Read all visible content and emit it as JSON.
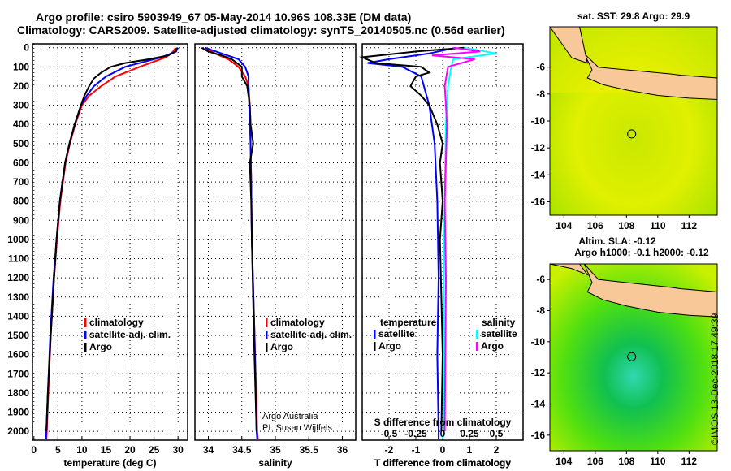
{
  "header": {
    "line1": "Argo profile: csiro 5903949_67 05-May-2014 10.96S 108.33E (DM data)",
    "line2": "Climatology: CARS2009. Satellite-adjusted climatology: synTS_20140505.nc (0.56d earlier)"
  },
  "colors": {
    "climatology": "#ff0000",
    "satellite": "#0000ff",
    "argo": "#000000",
    "sal_satellite": "#00ffff",
    "sal_argo": "#ff00ff"
  },
  "chart_data": [
    {
      "type": "line",
      "name": "temperature",
      "xlabel": "temperature (deg C)",
      "xlim": [
        -0.3,
        32
      ],
      "ylim": [
        2046,
        -20
      ],
      "xticks": [
        0,
        5,
        10,
        15,
        20,
        25,
        30
      ],
      "yticks": [
        0,
        100,
        200,
        300,
        400,
        500,
        600,
        700,
        800,
        900,
        1000,
        1100,
        1200,
        1300,
        1400,
        1500,
        1600,
        1700,
        1800,
        1900,
        2000
      ],
      "legend": [
        "climatology",
        "satellite-adj. clim.",
        "Argo"
      ],
      "series": [
        {
          "name": "climatology",
          "depth": [
            0,
            20,
            50,
            100,
            150,
            200,
            250,
            300,
            400,
            500,
            600,
            800,
            1000,
            1200,
            1500,
            1800,
            2000,
            2040
          ],
          "values": [
            29.5,
            29,
            27.5,
            22,
            17,
            14,
            11.5,
            10,
            8.6,
            7.5,
            6.6,
            5.5,
            4.8,
            4.2,
            3.5,
            3,
            2.7,
            2.6
          ]
        },
        {
          "name": "satellite-adj. clim.",
          "depth": [
            0,
            20,
            50,
            100,
            150,
            200,
            250,
            300,
            400,
            500,
            600,
            800,
            1000,
            1200,
            1500,
            1800,
            2000,
            2040
          ],
          "values": [
            30,
            29.6,
            26.5,
            19,
            15,
            12.5,
            11,
            9.8,
            8.5,
            7.4,
            6.5,
            5.4,
            4.7,
            4.1,
            3.4,
            2.9,
            2.6,
            2.5
          ]
        },
        {
          "name": "Argo",
          "depth": [
            0,
            20,
            40,
            60,
            80,
            100,
            130,
            160,
            200,
            250,
            300,
            400,
            500,
            600,
            800,
            1000,
            1200,
            1500,
            1800,
            2000
          ],
          "values": [
            29.8,
            29.5,
            28,
            24,
            19,
            16,
            14,
            12.5,
            11.5,
            10.5,
            9.8,
            8.5,
            7.4,
            6.5,
            5.4,
            4.7,
            4.2,
            3.5,
            2.9,
            2.6
          ]
        }
      ]
    },
    {
      "type": "line",
      "name": "salinity",
      "xlabel": "salinity",
      "xlim": [
        33.8,
        36.2
      ],
      "ylim": [
        2046,
        -20
      ],
      "xticks": [
        34,
        34.5,
        35,
        35.5,
        36
      ],
      "legend": [
        "climatology",
        "satellite-adj. clim.",
        "Argo"
      ],
      "note": [
        "Argo Australia",
        "PI: Susan Wijffels"
      ],
      "series": [
        {
          "name": "climatology",
          "depth": [
            0,
            30,
            60,
            100,
            150,
            200,
            300,
            400,
            500,
            700,
            1000,
            1500,
            2000,
            2040
          ],
          "values": [
            33.95,
            34.1,
            34.3,
            34.45,
            34.55,
            34.6,
            34.62,
            34.63,
            34.63,
            34.64,
            34.65,
            34.69,
            34.73,
            34.74
          ]
        },
        {
          "name": "satellite-adj. clim.",
          "depth": [
            0,
            30,
            60,
            100,
            150,
            200,
            300,
            400,
            500,
            700,
            1000,
            1500,
            2000,
            2040
          ],
          "values": [
            33.95,
            34.2,
            34.45,
            34.55,
            34.6,
            34.6,
            34.61,
            34.62,
            34.63,
            34.64,
            34.65,
            34.69,
            34.72,
            34.73
          ]
        },
        {
          "name": "Argo",
          "depth": [
            0,
            20,
            40,
            60,
            100,
            150,
            200,
            300,
            400,
            500,
            600,
            800,
            1000,
            1500,
            2000
          ],
          "values": [
            33.9,
            34.0,
            34.2,
            34.35,
            34.5,
            34.5,
            34.58,
            34.62,
            34.63,
            34.67,
            34.62,
            34.64,
            34.65,
            34.68,
            34.72
          ]
        }
      ]
    },
    {
      "type": "line",
      "name": "differences",
      "xlabel": "T difference from climatology",
      "xlabel2": "S difference from climatology",
      "xlim": [
        -3,
        3
      ],
      "ylim": [
        2046,
        -20
      ],
      "xticks": [
        -2,
        -1,
        0,
        1,
        2
      ],
      "xticks2": [
        "-0.5",
        "-0.25",
        "0",
        "0.25",
        "0.5"
      ],
      "legend_t": {
        "title": "temperature",
        "items": [
          "satellite",
          "Argo"
        ]
      },
      "legend_s": {
        "title": "salinity",
        "items": [
          "satellite",
          "Argo"
        ]
      },
      "series": [
        {
          "name": "T satellite",
          "depth": [
            0,
            30,
            60,
            80,
            100,
            150,
            200,
            300,
            500,
            800,
            1200,
            1600,
            2000,
            2040
          ],
          "values": [
            0.5,
            -0.5,
            -2,
            -2.8,
            -1.5,
            -0.8,
            -0.7,
            -0.5,
            -0.3,
            -0.2,
            -0.15,
            -0.2,
            -0.15,
            -0.15
          ]
        },
        {
          "name": "T Argo",
          "depth": [
            0,
            20,
            50,
            80,
            100,
            130,
            150,
            200,
            250,
            300,
            400,
            500,
            600,
            800,
            1000,
            1300,
            1600,
            2000
          ],
          "values": [
            0.8,
            -1,
            -3,
            -2.5,
            -0.8,
            -0.5,
            -1,
            -1.2,
            -0.8,
            -0.5,
            -0.2,
            0,
            -0.1,
            0,
            -0.1,
            -0.05,
            0,
            -0.05
          ]
        },
        {
          "name": "S satellite",
          "depth": [
            0,
            30,
            60,
            100,
            200,
            400,
            800,
            1200,
            2000,
            2040
          ],
          "values": [
            0.2,
            0.5,
            0.1,
            0.08,
            0.05,
            0.03,
            0.02,
            0.01,
            0.01,
            0.0
          ]
        },
        {
          "name": "S Argo",
          "depth": [
            0,
            20,
            40,
            60,
            100,
            200,
            300,
            400,
            800,
            1200,
            2000
          ],
          "values": [
            0.1,
            0.35,
            -0.1,
            0.3,
            0.05,
            0.02,
            0.03,
            0.04,
            0.02,
            0.03,
            0.02
          ]
        }
      ]
    },
    {
      "type": "heatmap",
      "name": "sst-map",
      "title": "sat. SST: 29.8 Argo: 29.9",
      "xticks": [
        104,
        106,
        108,
        110,
        112
      ],
      "yticks": [
        -6,
        -8,
        -10,
        -12,
        -14,
        -16
      ],
      "xlim": [
        103.1,
        113.8
      ],
      "ylim": [
        -17,
        -3
      ],
      "marker": [
        108.33,
        -10.96
      ]
    },
    {
      "type": "heatmap",
      "name": "sla-map",
      "title": "Altim. SLA: -0.12",
      "subtitle": "Argo h1000: -0.1 h2000: -0.12",
      "xticks": [
        104,
        106,
        108,
        110,
        112
      ],
      "yticks": [
        -6,
        -8,
        -10,
        -12,
        -14,
        -16
      ],
      "xlim": [
        103.1,
        113.8
      ],
      "ylim": [
        -17,
        -5
      ],
      "marker": [
        108.33,
        -10.96
      ]
    }
  ],
  "footer": {
    "credit": "©IMOS 13-Dec-2018 17:49:39"
  }
}
